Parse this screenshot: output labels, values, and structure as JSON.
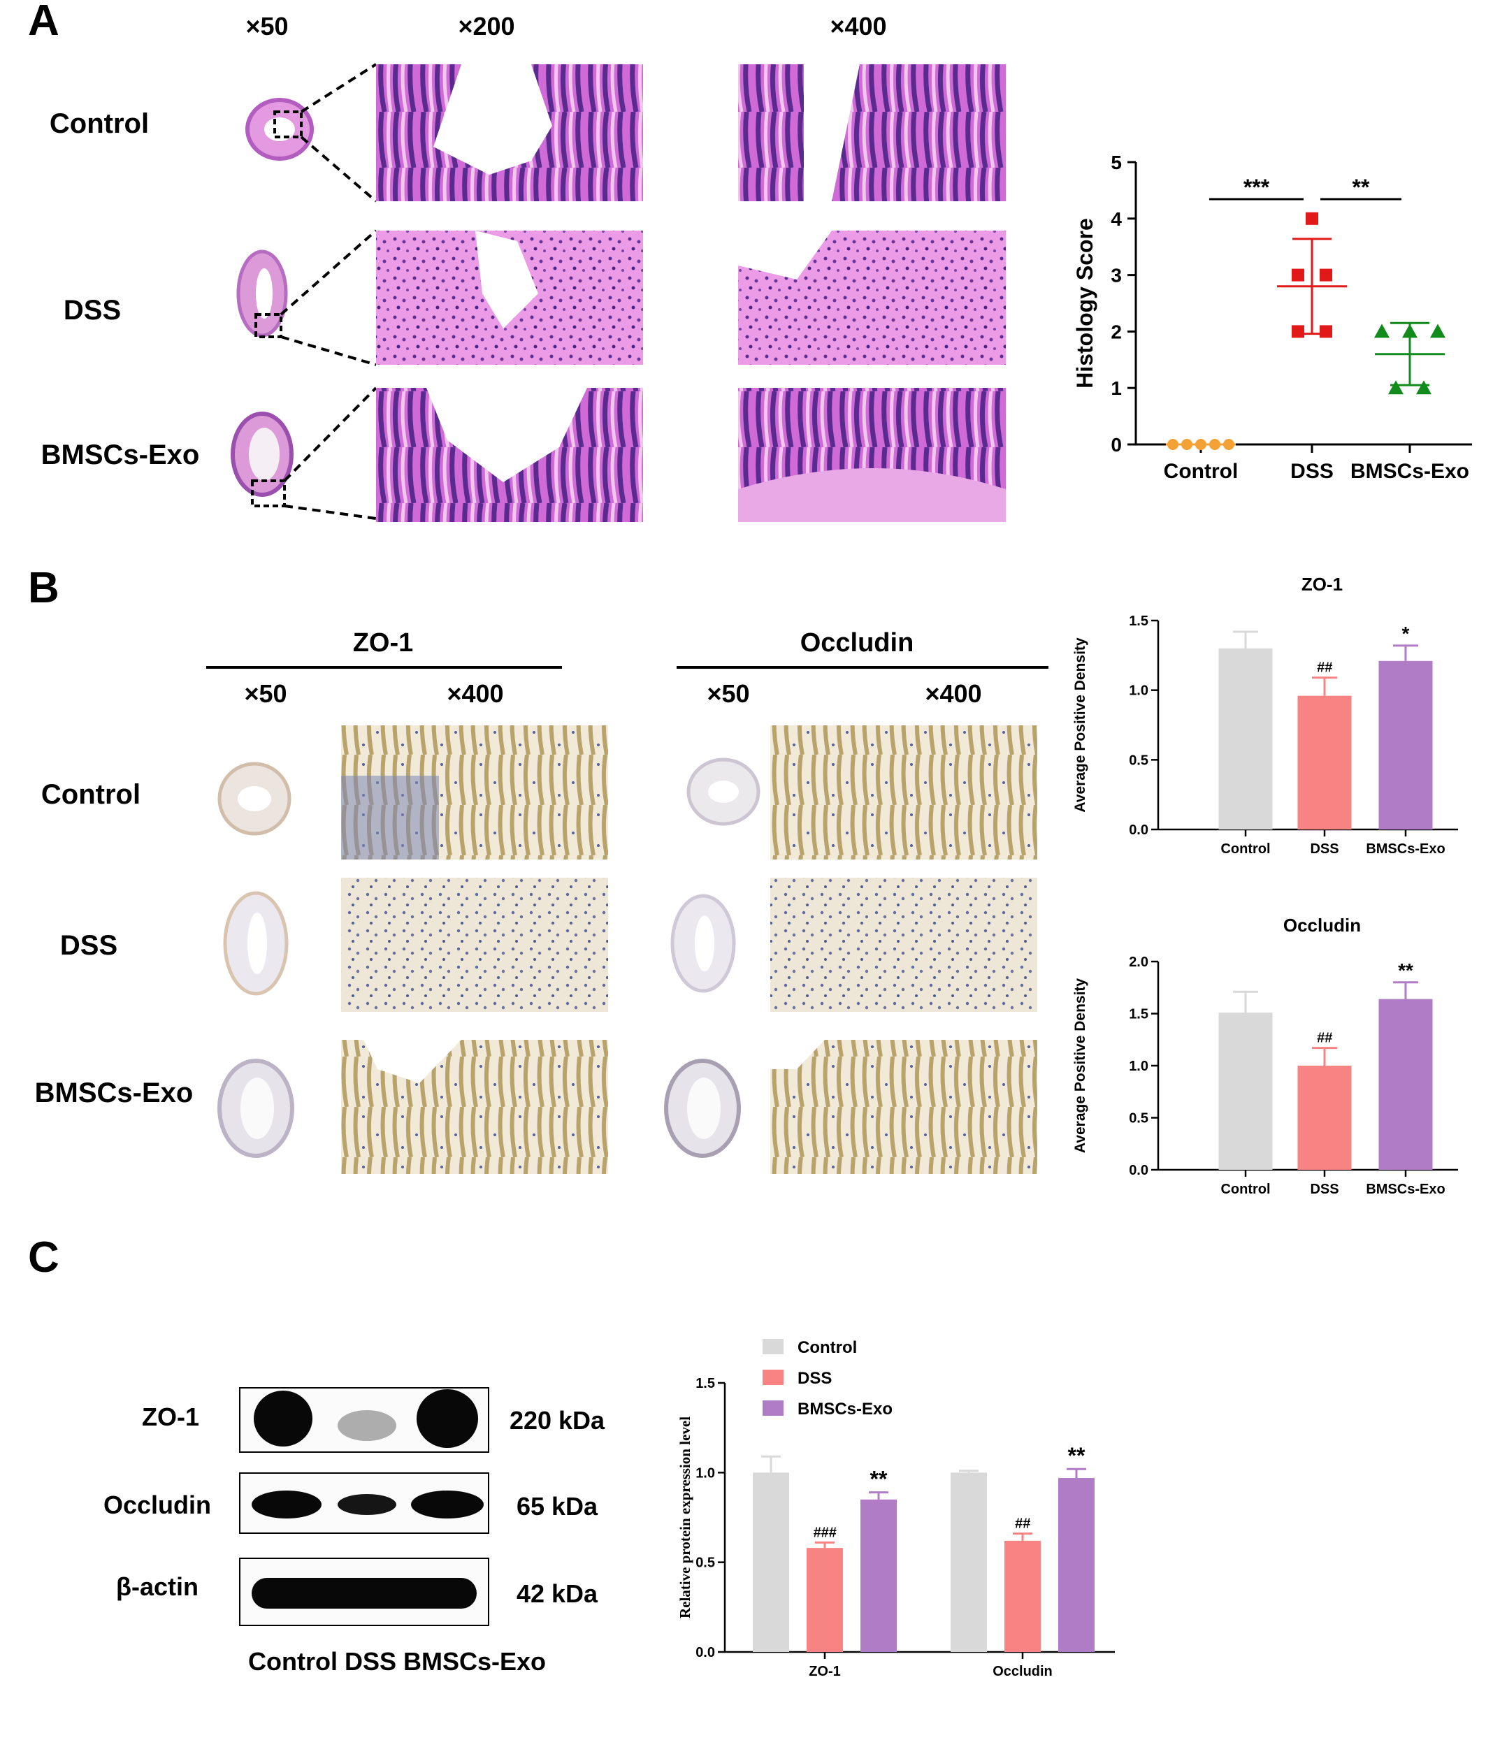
{
  "panel_letters": [
    "A",
    "B",
    "C"
  ],
  "panel_a": {
    "magnifications": [
      "×50",
      "×200",
      "×400"
    ],
    "rows": [
      "Control",
      "DSS",
      "BMSCs-Exo"
    ]
  },
  "panel_b": {
    "stains": [
      "ZO-1",
      "Occludin"
    ],
    "magnifications": [
      "×50",
      "×400"
    ],
    "rows": [
      "Control",
      "DSS",
      "BMSCs-Exo"
    ]
  },
  "panel_c": {
    "blot_rows": [
      "ZO-1",
      "Occludin",
      "β-actin"
    ],
    "blot_sizes": [
      "220 kDa",
      "65 kDa",
      "42 kDa"
    ],
    "lane_labels": "Control DSS BMSCs-Exo"
  },
  "colors": {
    "control": "#d9d9d9",
    "dss": "#f78383",
    "bmscs": "#b07cc6",
    "dot_control": "#f4a236",
    "dot_dss": "#e11919",
    "dot_bmscs": "#128b1c"
  },
  "chart_data": [
    {
      "type": "scatter",
      "ylabel": "Histology Score",
      "categories": [
        "Control",
        "DSS",
        "BMSCs-Exo"
      ],
      "ylim": [
        0,
        5
      ],
      "yticks": [
        "0",
        "1",
        "2",
        "3",
        "4",
        "5"
      ],
      "points": [
        [
          0,
          0,
          0,
          0,
          0
        ],
        [
          4,
          3,
          3,
          2,
          2
        ],
        [
          2,
          2,
          2,
          1,
          1
        ]
      ],
      "mean": [
        0,
        2.8,
        1.6
      ],
      "sd": [
        0,
        0.84,
        0.55
      ],
      "significance": [
        {
          "from": 0,
          "to": 1,
          "label": "***"
        },
        {
          "from": 1,
          "to": 2,
          "label": "**"
        }
      ]
    },
    {
      "type": "bar",
      "title": "ZO-1",
      "ylabel": "Average Positive Density",
      "categories": [
        "Control",
        "DSS",
        "BMSCs-Exo"
      ],
      "values": [
        1.3,
        0.96,
        1.21
      ],
      "errors": [
        0.12,
        0.13,
        0.11
      ],
      "annotations": [
        "",
        "##",
        "*"
      ],
      "ylim": [
        0,
        1.5
      ],
      "yticks": [
        "0.0",
        "0.5",
        "1.0",
        "1.5"
      ]
    },
    {
      "type": "bar",
      "title": "Occludin",
      "ylabel": "Average Positive Density",
      "categories": [
        "Control",
        "DSS",
        "BMSCs-Exo"
      ],
      "values": [
        1.51,
        1.0,
        1.64
      ],
      "errors": [
        0.2,
        0.17,
        0.16
      ],
      "annotations": [
        "",
        "##",
        "**"
      ],
      "ylim": [
        0,
        2.0
      ],
      "yticks": [
        "0.0",
        "0.5",
        "1.0",
        "1.5",
        "2.0"
      ]
    },
    {
      "type": "bar",
      "ylabel": "Relative protein expression level",
      "categories": [
        "ZO-1",
        "Occludin"
      ],
      "series": [
        {
          "name": "Control",
          "values": [
            1.0,
            1.0
          ],
          "errors": [
            0.09,
            0.01
          ],
          "annotations": [
            "",
            ""
          ]
        },
        {
          "name": "DSS",
          "values": [
            0.58,
            0.62
          ],
          "errors": [
            0.03,
            0.04
          ],
          "annotations": [
            "###",
            "##"
          ]
        },
        {
          "name": "BMSCs-Exo",
          "values": [
            0.85,
            0.97
          ],
          "errors": [
            0.04,
            0.05
          ],
          "annotations": [
            "**",
            "**"
          ]
        }
      ],
      "ylim": [
        0,
        1.5
      ],
      "yticks": [
        "0.0",
        "0.5",
        "1.0",
        "1.5"
      ]
    }
  ]
}
